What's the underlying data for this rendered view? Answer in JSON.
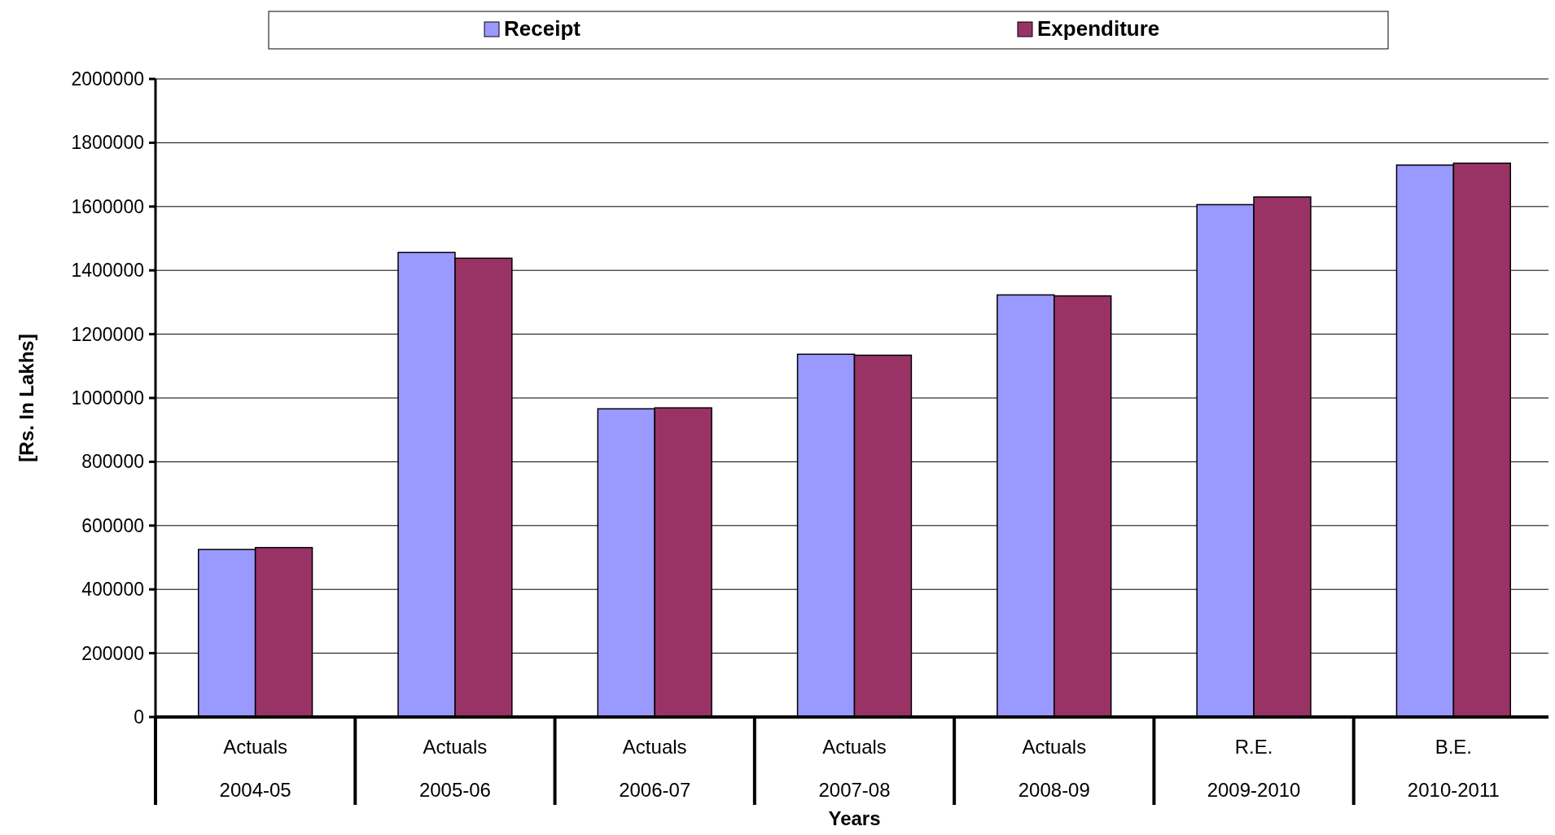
{
  "chart_data": {
    "type": "bar",
    "xlabel": "Years",
    "ylabel": "[Rs. In Lakhs]",
    "categories": [
      "Actuals\n2004-05",
      "Actuals\n2005-06",
      "Actuals\n2006-07",
      "Actuals\n2007-08",
      "Actuals\n2008-09",
      "R.E.\n2009-2010",
      "B.E.\n2010-2011"
    ],
    "series": [
      {
        "name": "Receipt",
        "color": "#9999ff",
        "values": [
          525000,
          1456000,
          966000,
          1137000,
          1323000,
          1606000,
          1730000
        ]
      },
      {
        "name": "Expenditure",
        "color": "#993366",
        "values": [
          531000,
          1438000,
          969000,
          1134000,
          1320000,
          1630000,
          1736000
        ]
      }
    ],
    "ylim": [
      0,
      2000000
    ],
    "yticks": [
      0,
      200000,
      400000,
      600000,
      800000,
      1000000,
      1200000,
      1400000,
      1600000,
      1800000,
      2000000
    ],
    "grid": "y",
    "legend": "top"
  }
}
